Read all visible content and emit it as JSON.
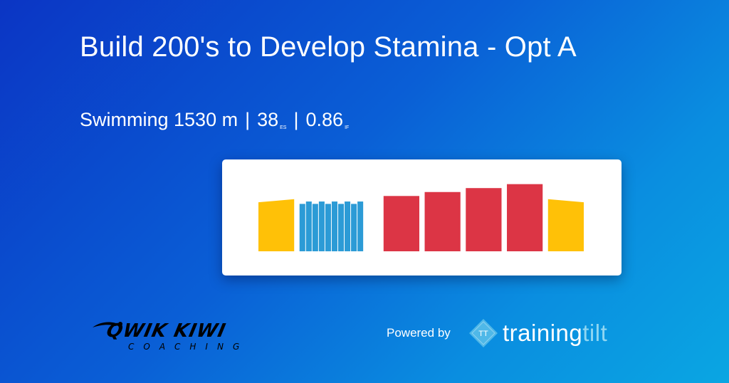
{
  "workout": {
    "title": "Build 200's to Develop Stamina - Opt A",
    "sport_distance": "Swimming 1530 m",
    "separator": "|",
    "es_value": "38",
    "es_label": "ES",
    "if_value": "0.86",
    "if_label": "IF"
  },
  "chart_data": {
    "type": "bar",
    "title": "",
    "xlabel": "",
    "ylabel": "",
    "colors": {
      "warmup": "#ffc107",
      "drill": "#2c9bd6",
      "main": "#dc3545",
      "cooldown": "#ffc107"
    },
    "segments": [
      {
        "zone": "warmup",
        "start": 0,
        "duration": 10,
        "intensity_start": 0.62,
        "intensity_end": 0.66
      },
      {
        "zone": "drill",
        "start": 11.5,
        "duration": 1.6,
        "intensity": 0.6
      },
      {
        "zone": "drill",
        "start": 13.3,
        "duration": 1.6,
        "intensity": 0.63
      },
      {
        "zone": "drill",
        "start": 15.1,
        "duration": 1.6,
        "intensity": 0.6
      },
      {
        "zone": "drill",
        "start": 16.9,
        "duration": 1.6,
        "intensity": 0.63
      },
      {
        "zone": "drill",
        "start": 18.7,
        "duration": 1.6,
        "intensity": 0.6
      },
      {
        "zone": "drill",
        "start": 20.5,
        "duration": 1.6,
        "intensity": 0.63
      },
      {
        "zone": "drill",
        "start": 22.3,
        "duration": 1.6,
        "intensity": 0.6
      },
      {
        "zone": "drill",
        "start": 24.1,
        "duration": 1.6,
        "intensity": 0.63
      },
      {
        "zone": "drill",
        "start": 25.9,
        "duration": 1.6,
        "intensity": 0.6
      },
      {
        "zone": "drill",
        "start": 27.7,
        "duration": 1.6,
        "intensity": 0.63
      },
      {
        "zone": "main",
        "start": 35,
        "duration": 10,
        "intensity": 0.7
      },
      {
        "zone": "main",
        "start": 46.5,
        "duration": 10,
        "intensity": 0.75
      },
      {
        "zone": "main",
        "start": 58,
        "duration": 10,
        "intensity": 0.8
      },
      {
        "zone": "main",
        "start": 69.5,
        "duration": 10,
        "intensity": 0.85
      },
      {
        "zone": "cooldown",
        "start": 81,
        "duration": 10,
        "intensity_start": 0.66,
        "intensity_end": 0.62
      }
    ],
    "x_range": [
      0,
      91
    ],
    "y_range": [
      0,
      1
    ]
  },
  "branding": {
    "coach_logo_main": "QWIK KIWI",
    "coach_logo_sub": "COACHING",
    "powered_by": "Powered by",
    "tt_icon_text": "TT",
    "platform_word_main": "training",
    "platform_word_light": "tilt"
  }
}
